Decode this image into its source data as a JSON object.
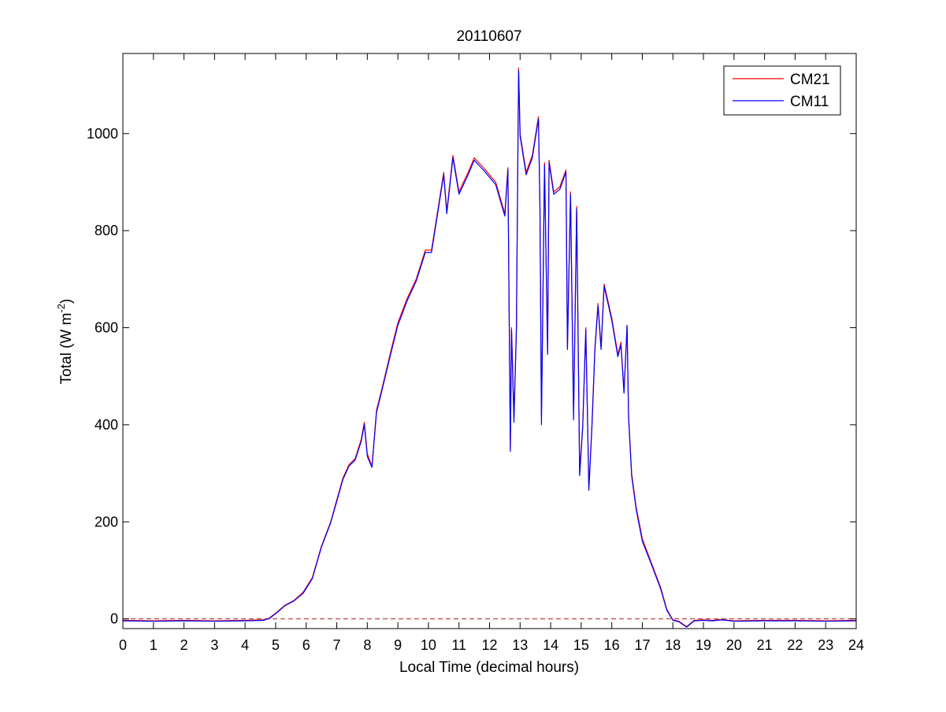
{
  "chart_data": {
    "type": "line",
    "title": "20110607",
    "xlabel": "Local Time (decimal hours)",
    "ylabel": {
      "main": "Total (W m",
      "superscript": "-2",
      "close": ")"
    },
    "xlim": [
      0,
      24
    ],
    "ylim": [
      -20,
      1165
    ],
    "x_ticks": [
      0,
      1,
      2,
      3,
      4,
      5,
      6,
      7,
      8,
      9,
      10,
      11,
      12,
      13,
      14,
      15,
      16,
      17,
      18,
      19,
      20,
      21,
      22,
      23,
      24
    ],
    "y_ticks": [
      0,
      200,
      400,
      600,
      800,
      1000
    ],
    "grid": false,
    "legend": {
      "placement": "top-right"
    },
    "reference_line": {
      "y": 0,
      "style": "dashed",
      "color": "#b22222"
    },
    "colors": {
      "CM21": "#ff0000",
      "CM11": "#0000ff"
    },
    "series": [
      {
        "name": "CM21",
        "color": "#ff0000",
        "points": [
          [
            0,
            -3
          ],
          [
            1,
            -4
          ],
          [
            2,
            -3
          ],
          [
            3,
            -4
          ],
          [
            4,
            -3
          ],
          [
            4.6,
            -2
          ],
          [
            4.8,
            2
          ],
          [
            5.0,
            12
          ],
          [
            5.3,
            28
          ],
          [
            5.6,
            38
          ],
          [
            5.9,
            55
          ],
          [
            6.2,
            85
          ],
          [
            6.5,
            150
          ],
          [
            6.8,
            200
          ],
          [
            7.0,
            245
          ],
          [
            7.2,
            290
          ],
          [
            7.4,
            318
          ],
          [
            7.6,
            330
          ],
          [
            7.8,
            370
          ],
          [
            7.9,
            405
          ],
          [
            8.0,
            340
          ],
          [
            8.15,
            315
          ],
          [
            8.3,
            430
          ],
          [
            8.5,
            480
          ],
          [
            8.8,
            560
          ],
          [
            9.0,
            610
          ],
          [
            9.3,
            660
          ],
          [
            9.6,
            700
          ],
          [
            9.9,
            760
          ],
          [
            10.1,
            760
          ],
          [
            10.3,
            840
          ],
          [
            10.5,
            920
          ],
          [
            10.6,
            840
          ],
          [
            10.8,
            955
          ],
          [
            11.0,
            880
          ],
          [
            11.3,
            920
          ],
          [
            11.5,
            950
          ],
          [
            11.8,
            930
          ],
          [
            12.0,
            915
          ],
          [
            12.2,
            900
          ],
          [
            12.5,
            835
          ],
          [
            12.6,
            930
          ],
          [
            12.68,
            350
          ],
          [
            12.72,
            600
          ],
          [
            12.8,
            420
          ],
          [
            12.88,
            600
          ],
          [
            12.95,
            1135
          ],
          [
            13.0,
            1000
          ],
          [
            13.2,
            920
          ],
          [
            13.4,
            955
          ],
          [
            13.6,
            1035
          ],
          [
            13.65,
            850
          ],
          [
            13.7,
            420
          ],
          [
            13.8,
            940
          ],
          [
            13.9,
            550
          ],
          [
            13.95,
            945
          ],
          [
            14.1,
            880
          ],
          [
            14.3,
            890
          ],
          [
            14.5,
            925
          ],
          [
            14.55,
            560
          ],
          [
            14.65,
            880
          ],
          [
            14.75,
            420
          ],
          [
            14.85,
            850
          ],
          [
            14.95,
            300
          ],
          [
            15.05,
            400
          ],
          [
            15.15,
            600
          ],
          [
            15.25,
            270
          ],
          [
            15.35,
            400
          ],
          [
            15.45,
            560
          ],
          [
            15.55,
            650
          ],
          [
            15.65,
            560
          ],
          [
            15.75,
            690
          ],
          [
            16.0,
            620
          ],
          [
            16.2,
            545
          ],
          [
            16.3,
            570
          ],
          [
            16.4,
            470
          ],
          [
            16.5,
            600
          ],
          [
            16.55,
            420
          ],
          [
            16.65,
            300
          ],
          [
            16.8,
            230
          ],
          [
            17.0,
            165
          ],
          [
            17.3,
            115
          ],
          [
            17.6,
            65
          ],
          [
            17.8,
            20
          ],
          [
            18.0,
            -2
          ],
          [
            18.2,
            -5
          ],
          [
            18.45,
            -16
          ],
          [
            18.7,
            -3
          ],
          [
            19.0,
            -2
          ],
          [
            19.3,
            -3
          ],
          [
            19.6,
            -1
          ],
          [
            20.0,
            -4
          ],
          [
            21,
            -3
          ],
          [
            22,
            -3
          ],
          [
            23,
            -4
          ],
          [
            24,
            -3
          ]
        ]
      },
      {
        "name": "CM11",
        "color": "#0000ff",
        "points": [
          [
            0,
            -4
          ],
          [
            1,
            -5
          ],
          [
            2,
            -4
          ],
          [
            3,
            -5
          ],
          [
            4,
            -4
          ],
          [
            4.6,
            -3
          ],
          [
            4.8,
            1
          ],
          [
            5.0,
            11
          ],
          [
            5.3,
            27
          ],
          [
            5.6,
            37
          ],
          [
            5.9,
            53
          ],
          [
            6.2,
            83
          ],
          [
            6.5,
            148
          ],
          [
            6.8,
            198
          ],
          [
            7.0,
            242
          ],
          [
            7.2,
            287
          ],
          [
            7.4,
            315
          ],
          [
            7.6,
            327
          ],
          [
            7.8,
            366
          ],
          [
            7.9,
            400
          ],
          [
            8.0,
            335
          ],
          [
            8.15,
            312
          ],
          [
            8.3,
            425
          ],
          [
            8.5,
            476
          ],
          [
            8.8,
            555
          ],
          [
            9.0,
            605
          ],
          [
            9.3,
            655
          ],
          [
            9.6,
            696
          ],
          [
            9.9,
            755
          ],
          [
            10.1,
            755
          ],
          [
            10.3,
            835
          ],
          [
            10.5,
            915
          ],
          [
            10.6,
            835
          ],
          [
            10.8,
            950
          ],
          [
            11.0,
            875
          ],
          [
            11.3,
            915
          ],
          [
            11.5,
            945
          ],
          [
            11.8,
            925
          ],
          [
            12.0,
            910
          ],
          [
            12.2,
            895
          ],
          [
            12.5,
            830
          ],
          [
            12.6,
            925
          ],
          [
            12.68,
            345
          ],
          [
            12.72,
            595
          ],
          [
            12.8,
            405
          ],
          [
            12.88,
            595
          ],
          [
            12.95,
            1130
          ],
          [
            13.0,
            995
          ],
          [
            13.2,
            915
          ],
          [
            13.4,
            950
          ],
          [
            13.6,
            1030
          ],
          [
            13.65,
            845
          ],
          [
            13.7,
            400
          ],
          [
            13.8,
            935
          ],
          [
            13.9,
            545
          ],
          [
            13.95,
            940
          ],
          [
            14.1,
            875
          ],
          [
            14.3,
            885
          ],
          [
            14.5,
            920
          ],
          [
            14.55,
            555
          ],
          [
            14.65,
            875
          ],
          [
            14.75,
            410
          ],
          [
            14.85,
            845
          ],
          [
            14.95,
            295
          ],
          [
            15.05,
            395
          ],
          [
            15.15,
            595
          ],
          [
            15.25,
            265
          ],
          [
            15.35,
            395
          ],
          [
            15.45,
            555
          ],
          [
            15.55,
            645
          ],
          [
            15.65,
            555
          ],
          [
            15.75,
            685
          ],
          [
            16.0,
            615
          ],
          [
            16.2,
            540
          ],
          [
            16.3,
            565
          ],
          [
            16.4,
            465
          ],
          [
            16.5,
            605
          ],
          [
            16.55,
            415
          ],
          [
            16.65,
            295
          ],
          [
            16.8,
            225
          ],
          [
            17.0,
            160
          ],
          [
            17.3,
            112
          ],
          [
            17.6,
            62
          ],
          [
            17.8,
            18
          ],
          [
            18.0,
            -3
          ],
          [
            18.2,
            -6
          ],
          [
            18.45,
            -17
          ],
          [
            18.7,
            -4
          ],
          [
            19.0,
            -3
          ],
          [
            19.3,
            -4
          ],
          [
            19.6,
            -2
          ],
          [
            20.0,
            -5
          ],
          [
            21,
            -4
          ],
          [
            22,
            -4
          ],
          [
            23,
            -5
          ],
          [
            24,
            -4
          ]
        ]
      }
    ]
  }
}
